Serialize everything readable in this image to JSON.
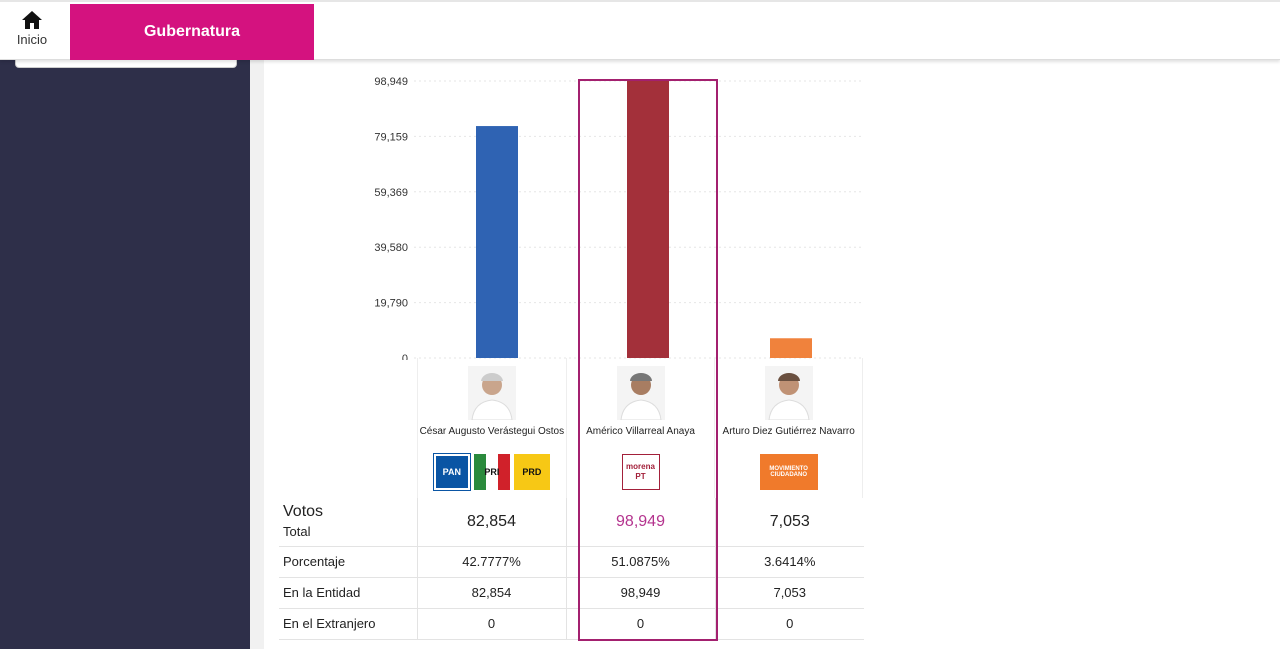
{
  "nav": {
    "home_label": "Inicio",
    "tab_label": "Gubernatura"
  },
  "chart_data": {
    "type": "bar",
    "categories": [
      "César Augusto Verástegui Ostos",
      "Américo Villarreal Anaya",
      "Arturo Diez Gutiérrez Navarro"
    ],
    "values": [
      82854,
      98949,
      7053
    ],
    "ylim": [
      0,
      98949
    ],
    "yticks": [
      "98,949",
      "79,159",
      "59,369",
      "39,580",
      "19,790",
      "0"
    ],
    "colors": [
      "#2f63b3",
      "#a3303a",
      "#f0823c"
    ],
    "grid": true
  },
  "candidates": [
    {
      "name": "César Augusto Verástegui Ostos",
      "parties": [
        "PAN",
        "PRI",
        "PRD"
      ]
    },
    {
      "name": "Américo Villarreal Anaya",
      "parties": [
        "morena PT"
      ]
    },
    {
      "name": "Arturo Diez Gutiérrez Navarro",
      "parties": [
        "MOVIMIENTO CIUDADANO"
      ]
    }
  ],
  "table": {
    "votos_label": "Votos",
    "total_label": "Total",
    "porcentaje_label": "Porcentaje",
    "entidad_label": "En la Entidad",
    "extranjero_label": "En el Extranjero",
    "votos": [
      "82,854",
      "98,949",
      "7,053"
    ],
    "porcentaje": [
      "42.7777%",
      "51.0875%",
      "3.6414%"
    ],
    "entidad": [
      "82,854",
      "98,949",
      "7,053"
    ],
    "extranjero": [
      "0",
      "0",
      "0"
    ]
  },
  "colors": {
    "accent": "#d4127f",
    "sidebar": "#2e2f49",
    "highlight": "#a3206f"
  }
}
